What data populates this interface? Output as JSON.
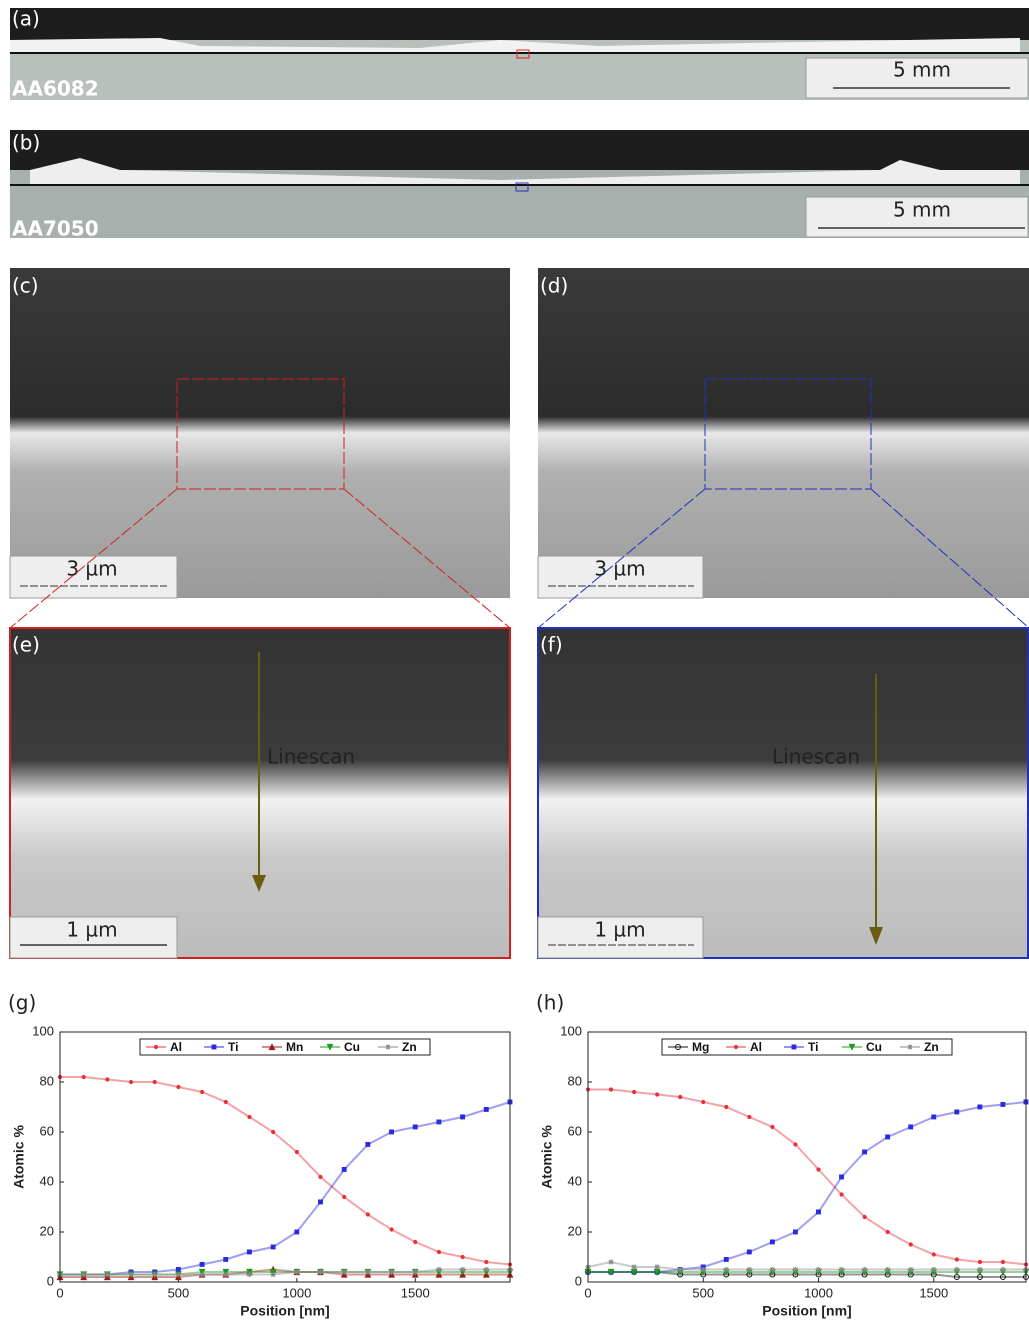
{
  "panels": {
    "a": {
      "label": "(a)",
      "alloy": "AA6082",
      "scale": "5 mm"
    },
    "b": {
      "label": "(b)",
      "alloy": "AA7050",
      "scale": "5 mm"
    },
    "c": {
      "label": "(c)",
      "scale": "3 µm"
    },
    "d": {
      "label": "(d)",
      "scale": "3 µm"
    },
    "e": {
      "label": "(e)",
      "scale": "1 µm",
      "annotation": "Linescan"
    },
    "f": {
      "label": "(f)",
      "scale": "1 µm",
      "annotation": "Linescan"
    }
  },
  "chart_data": [
    {
      "type": "line",
      "panel_label": "(g)",
      "xlabel": "Position [nm]",
      "ylabel": "Atomic %",
      "xlim": [
        0,
        1900
      ],
      "ylim": [
        0,
        100
      ],
      "xticks": [
        0,
        500,
        1000,
        1500
      ],
      "yticks": [
        0,
        20,
        40,
        60,
        80,
        100
      ],
      "x": [
        0,
        100,
        200,
        300,
        400,
        500,
        600,
        700,
        800,
        900,
        1000,
        1100,
        1200,
        1300,
        1400,
        1500,
        1600,
        1700,
        1800,
        1900
      ],
      "series": [
        {
          "name": "Al",
          "color": "#e8303a",
          "marker": "circle",
          "values": [
            82,
            82,
            81,
            80,
            80,
            78,
            76,
            72,
            66,
            60,
            52,
            42,
            34,
            27,
            21,
            16,
            12,
            10,
            8,
            7
          ]
        },
        {
          "name": "Ti",
          "color": "#2a2ae0",
          "marker": "square",
          "values": [
            3,
            3,
            3,
            4,
            4,
            5,
            7,
            9,
            12,
            14,
            20,
            32,
            45,
            55,
            60,
            62,
            64,
            66,
            69,
            72
          ]
        },
        {
          "name": "Mn",
          "color": "#a01818",
          "marker": "triangle-up",
          "values": [
            2,
            2,
            2,
            2,
            2,
            2,
            3,
            3,
            4,
            5,
            4,
            4,
            3,
            3,
            3,
            3,
            3,
            3,
            3,
            3
          ]
        },
        {
          "name": "Cu",
          "color": "#1f9a1f",
          "marker": "triangle-down",
          "values": [
            3,
            3,
            3,
            3,
            3,
            3,
            4,
            4,
            4,
            4,
            4,
            4,
            4,
            4,
            4,
            4,
            4,
            4,
            4,
            4
          ]
        },
        {
          "name": "Zn",
          "color": "#888888",
          "marker": "star",
          "values": [
            3,
            3,
            3,
            3,
            3,
            3,
            3,
            3,
            3,
            3,
            4,
            4,
            4,
            4,
            4,
            4,
            5,
            5,
            5,
            5
          ]
        }
      ]
    },
    {
      "type": "line",
      "panel_label": "(h)",
      "xlabel": "Position [nm]",
      "ylabel": "Atomic %",
      "xlim": [
        0,
        1900
      ],
      "ylim": [
        0,
        100
      ],
      "xticks": [
        0,
        500,
        1000,
        1500
      ],
      "yticks": [
        0,
        20,
        40,
        60,
        80,
        100
      ],
      "x": [
        0,
        100,
        200,
        300,
        400,
        500,
        600,
        700,
        800,
        900,
        1000,
        1100,
        1200,
        1300,
        1400,
        1500,
        1600,
        1700,
        1800,
        1900
      ],
      "series": [
        {
          "name": "Mg",
          "color": "#111111",
          "marker": "circle-open",
          "values": [
            4,
            4,
            4,
            4,
            3,
            3,
            3,
            3,
            3,
            3,
            3,
            3,
            3,
            3,
            3,
            3,
            2,
            2,
            2,
            2
          ]
        },
        {
          "name": "Al",
          "color": "#e8303a",
          "marker": "circle",
          "values": [
            77,
            77,
            76,
            75,
            74,
            72,
            70,
            66,
            62,
            55,
            45,
            35,
            26,
            20,
            15,
            11,
            9,
            8,
            8,
            7
          ]
        },
        {
          "name": "Ti",
          "color": "#2a2ae0",
          "marker": "square",
          "values": [
            4,
            4,
            4,
            4,
            5,
            6,
            9,
            12,
            16,
            20,
            28,
            42,
            52,
            58,
            62,
            66,
            68,
            70,
            71,
            72
          ]
        },
        {
          "name": "Cu",
          "color": "#1f9a1f",
          "marker": "triangle-down",
          "values": [
            4,
            4,
            4,
            4,
            4,
            4,
            4,
            4,
            4,
            4,
            4,
            4,
            4,
            4,
            4,
            4,
            4,
            4,
            4,
            4
          ]
        },
        {
          "name": "Zn",
          "color": "#888888",
          "marker": "star",
          "values": [
            6,
            8,
            6,
            6,
            5,
            5,
            5,
            5,
            5,
            5,
            5,
            5,
            5,
            5,
            5,
            5,
            5,
            5,
            5,
            5
          ]
        }
      ]
    }
  ]
}
